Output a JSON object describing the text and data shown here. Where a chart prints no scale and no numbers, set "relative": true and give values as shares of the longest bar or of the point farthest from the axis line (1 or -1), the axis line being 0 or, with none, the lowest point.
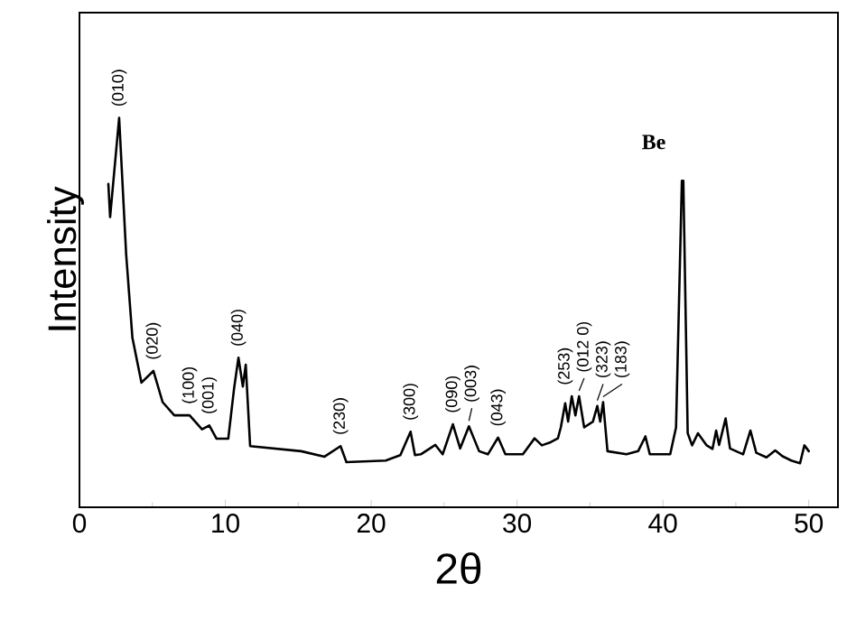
{
  "chart_data": {
    "type": "line",
    "relative": true,
    "xlabel": "2θ",
    "ylabel": "Intensity",
    "color": "#000000",
    "xlim": [
      0,
      52
    ],
    "xticks": [
      0,
      10,
      20,
      30,
      40,
      50
    ],
    "x": [
      1.98,
      2.1,
      2.72,
      3.2,
      3.63,
      4.25,
      5.07,
      5.7,
      6.5,
      7.55,
      8.4,
      8.9,
      9.4,
      10.2,
      10.6,
      10.9,
      11.2,
      11.4,
      11.7,
      15.2,
      16.8,
      17.9,
      18.3,
      21.0,
      22.0,
      22.7,
      23.0,
      23.4,
      24.4,
      24.9,
      25.6,
      26.1,
      26.7,
      27.4,
      28.0,
      28.7,
      29.2,
      30.4,
      31.2,
      31.7,
      32.3,
      32.8,
      33.0,
      33.3,
      33.5,
      33.75,
      34.0,
      34.25,
      34.6,
      35.2,
      35.5,
      35.7,
      35.9,
      36.2,
      37.5,
      38.3,
      38.8,
      39.1,
      40.5,
      40.9,
      41.3,
      41.4,
      41.7,
      42.0,
      42.4,
      43.0,
      43.4,
      43.65,
      43.85,
      44.3,
      44.6,
      45.5,
      46.0,
      46.4,
      47.1,
      47.7,
      48.2,
      48.8,
      49.4,
      49.7,
      50.0
    ],
    "values": [
      0.83,
      0.745,
      1.0,
      0.65,
      0.435,
      0.32,
      0.35,
      0.27,
      0.236,
      0.236,
      0.2,
      0.21,
      0.176,
      0.176,
      0.305,
      0.384,
      0.31,
      0.366,
      0.157,
      0.144,
      0.13,
      0.157,
      0.116,
      0.12,
      0.134,
      0.194,
      0.134,
      0.136,
      0.16,
      0.136,
      0.213,
      0.151,
      0.208,
      0.144,
      0.136,
      0.179,
      0.136,
      0.136,
      0.177,
      0.159,
      0.167,
      0.177,
      0.205,
      0.267,
      0.22,
      0.285,
      0.236,
      0.285,
      0.205,
      0.22,
      0.26,
      0.22,
      0.27,
      0.144,
      0.136,
      0.144,
      0.182,
      0.136,
      0.136,
      0.205,
      0.838,
      0.838,
      0.19,
      0.159,
      0.19,
      0.159,
      0.15,
      0.197,
      0.16,
      0.228,
      0.151,
      0.136,
      0.197,
      0.14,
      0.128,
      0.146,
      0.131,
      0.12,
      0.113,
      0.159,
      0.144
    ],
    "annotations": [
      {
        "text": "(010)",
        "x": 2.72,
        "y": 1.0
      },
      {
        "text": "(020)",
        "x": 5.07,
        "y": 0.35
      },
      {
        "text": "(100)",
        "x": 7.55,
        "y": 0.236
      },
      {
        "text": "(001)",
        "x": 8.9,
        "y": 0.21
      },
      {
        "text": "(040)",
        "x": 10.9,
        "y": 0.384
      },
      {
        "text": "(230)",
        "x": 17.9,
        "y": 0.157
      },
      {
        "text": "(300)",
        "x": 22.7,
        "y": 0.194
      },
      {
        "text": "(090)",
        "x": 25.6,
        "y": 0.213
      },
      {
        "text": "(003)",
        "x": 26.7,
        "y": 0.208
      },
      {
        "text": "(043)",
        "x": 28.7,
        "y": 0.179
      },
      {
        "text": "(253)",
        "x": 33.3,
        "y": 0.267
      },
      {
        "text": "(012 0)",
        "x": 34.25,
        "y": 0.285
      },
      {
        "text": "(323)",
        "x": 35.5,
        "y": 0.26
      },
      {
        "text": "(183)",
        "x": 35.9,
        "y": 0.27
      },
      {
        "text": "**Be**",
        "x": 41.35,
        "y": 0.838
      }
    ]
  }
}
